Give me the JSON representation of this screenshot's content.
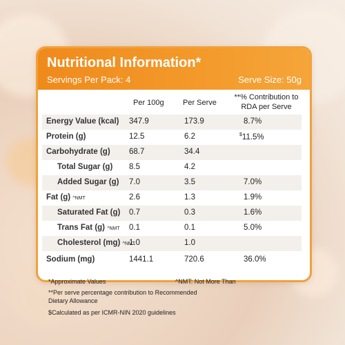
{
  "header": {
    "title": "Nutritional Information*",
    "servings": "Servings Per Pack: 4",
    "serve_size": "Serve Size: 50g"
  },
  "columns": {
    "per_100g": "Per 100g",
    "per_serve": "Per Serve",
    "rda_line1": "**% Contribution to",
    "rda_line2": "RDA per Serve"
  },
  "rows": [
    {
      "label": "Energy Value (kcal)",
      "per_100g": "347.9",
      "per_serve": "173.9",
      "rda": "8.7%"
    },
    {
      "label": "Protein (g)",
      "per_100g": "12.5",
      "per_serve": "6.2",
      "rda": "11.5%",
      "rda_mark": "$"
    },
    {
      "label": "Carbohydrate (g)",
      "per_100g": "68.7",
      "per_serve": "34.4",
      "rda": ""
    },
    {
      "label": "Total Sugar (g)",
      "per_100g": "8.5",
      "per_serve": "4.2",
      "rda": ""
    },
    {
      "label": "Added Sugar (g)",
      "per_100g": "7.0",
      "per_serve": "3.5",
      "rda": "7.0%"
    },
    {
      "label": "Fat (g)",
      "label_mark": "^NMT",
      "per_100g": "2.6",
      "per_serve": "1.3",
      "rda": "1.9%"
    },
    {
      "label": "Saturated Fat (g)",
      "per_100g": "0.7",
      "per_serve": "0.3",
      "rda": "1.6%"
    },
    {
      "label": "Trans Fat (g)",
      "label_mark": "^NMT",
      "per_100g": "0.1",
      "per_serve": "0.1",
      "rda": "5.0%"
    },
    {
      "label": "Cholesterol (mg)",
      "label_mark": "^NMT",
      "per_100g": "1.0",
      "per_serve": "1.0",
      "rda": ""
    },
    {
      "label": "Sodium (mg)",
      "per_100g": "1441.1",
      "per_serve": "720.6",
      "rda": "36.0%"
    }
  ],
  "footnotes": {
    "approx": "*Approximate Values",
    "nmt": "^NMT: Not More Than",
    "rda_line1": "**Per serve percentage contribution to Recommended",
    "rda_line2": "Dietary Allowance",
    "icmr": "$Calculated as per ICMR-NIN 2020 guidelines"
  },
  "colors": {
    "accent": "#f39a2b",
    "border": "#f2a13a"
  }
}
